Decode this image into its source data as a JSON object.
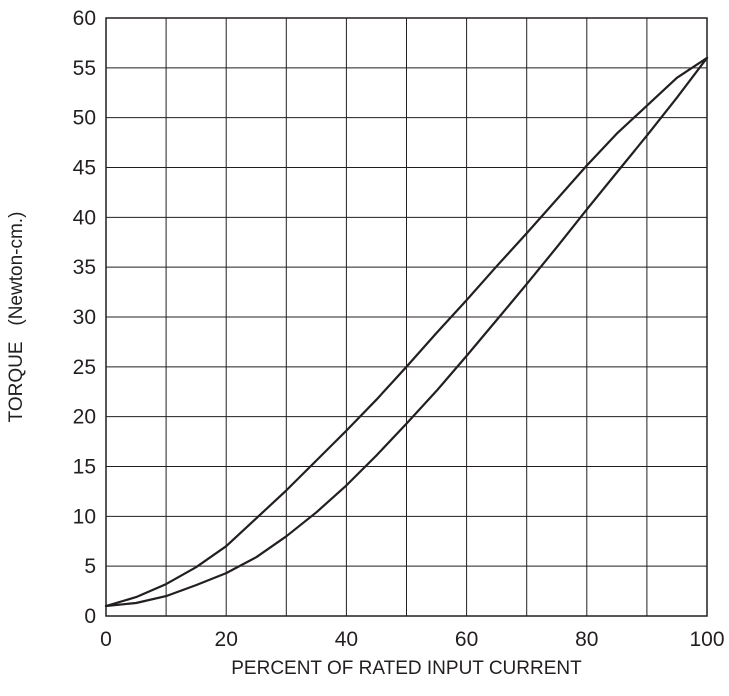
{
  "chart_data": {
    "type": "line",
    "title": "",
    "xlabel": "PERCENT OF RATED INPUT CURRENT",
    "ylabel": "TORQUE   (Newton-cm.)",
    "xlim": [
      0,
      100
    ],
    "ylim": [
      0,
      60
    ],
    "x_ticks": [
      0,
      20,
      40,
      60,
      80,
      100
    ],
    "y_ticks": [
      0,
      5,
      10,
      15,
      20,
      25,
      30,
      35,
      40,
      45,
      50,
      55,
      60
    ],
    "x_tick_labels": [
      "0",
      "20",
      "40",
      "60",
      "80",
      "100"
    ],
    "y_tick_labels": [
      "0",
      "5",
      "10",
      "15",
      "20",
      "25",
      "30",
      "35",
      "40",
      "45",
      "50",
      "55",
      "60"
    ],
    "grid": true,
    "grid_x_step": 10,
    "grid_y_step": 5,
    "legend": "none",
    "series": [
      {
        "x": [
          0,
          5,
          10,
          15,
          20,
          25,
          30,
          35,
          40,
          45,
          50,
          55,
          60,
          65,
          70,
          75,
          80,
          85,
          90,
          95,
          100
        ],
        "values": [
          1.0,
          1.9,
          3.2,
          4.9,
          7.0,
          9.8,
          12.6,
          15.6,
          18.6,
          21.7,
          25.0,
          28.4,
          31.7,
          35.1,
          38.4,
          41.8,
          45.2,
          48.4,
          51.2,
          54.0,
          56.0
        ]
      },
      {
        "x": [
          0,
          5,
          10,
          15,
          20,
          25,
          30,
          35,
          40,
          45,
          50,
          55,
          60,
          65,
          70,
          75,
          80,
          85,
          90,
          95,
          100
        ],
        "values": [
          1.0,
          1.3,
          2.0,
          3.1,
          4.3,
          5.9,
          8.0,
          10.4,
          13.1,
          16.1,
          19.3,
          22.6,
          26.1,
          29.7,
          33.3,
          37.0,
          40.8,
          44.5,
          48.2,
          52.0,
          56.0
        ]
      }
    ]
  }
}
